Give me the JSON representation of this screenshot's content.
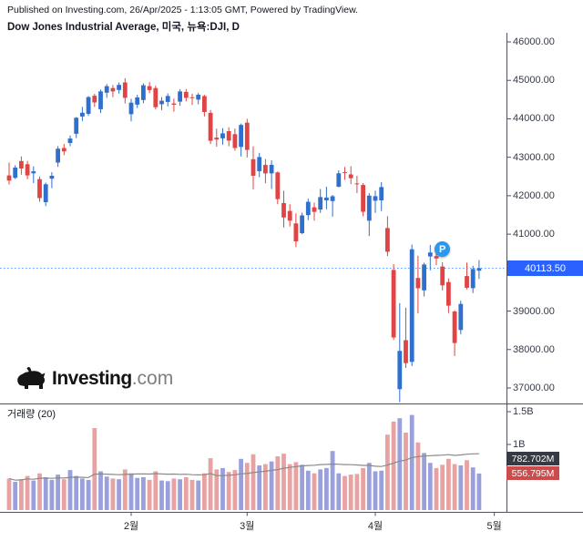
{
  "header": {
    "published_line": "Published on Investing.com, 26/Apr/2025 - 1:13:05 GMT, Powered by TradingView.",
    "title": "Dow Jones Industrial Average, 미국, 뉴욕:DJI, D"
  },
  "logo": {
    "main": "Investing",
    "suffix": ".com"
  },
  "price_axis": {
    "ticks": [
      {
        "text": "46000.00",
        "value": 46000
      },
      {
        "text": "45000.00",
        "value": 45000
      },
      {
        "text": "44000.00",
        "value": 44000
      },
      {
        "text": "43000.00",
        "value": 43000
      },
      {
        "text": "42000.00",
        "value": 42000
      },
      {
        "text": "41000.00",
        "value": 41000
      },
      {
        "text": "40000.00",
        "value": 40000
      },
      {
        "text": "39000.00",
        "value": 39000
      },
      {
        "text": "38000.00",
        "value": 38000
      },
      {
        "text": "37000.00",
        "value": 37000
      }
    ],
    "current_price": {
      "text": "40113.50",
      "value": 40113.5
    }
  },
  "volume_panel": {
    "label": "거래량 (20)",
    "ticks": [
      {
        "text": "1.5B",
        "value": 1500
      },
      {
        "text": "1B",
        "value": 1000
      }
    ],
    "ma_badge": {
      "text": "782.702M",
      "value": 782.702
    },
    "last_badge": {
      "text": "556.795M",
      "value": 556.795
    }
  },
  "time_axis": {
    "labels": [
      {
        "text": "2월",
        "index": 20
      },
      {
        "text": "3월",
        "index": 39
      },
      {
        "text": "4월",
        "index": 60
      },
      {
        "text": "5월",
        "index": 79.5
      }
    ]
  },
  "marker": {
    "label": "P",
    "candle_index": 71
  },
  "colors": {
    "up": "#2f6fce",
    "down": "#e04444",
    "vol_up": "#9aa0dc",
    "vol_down": "#e9a2a2",
    "price_line": "#5b9cf6",
    "price_badge_bg": "#2962ff",
    "ma_badge_bg": "#363a45",
    "vol_badge_bg": "#cc4b4b",
    "vol_ma_line": "#8a8a8a",
    "marker_bg": "#2b98f0",
    "axis_text": "#363a45",
    "separator": "#50535e"
  },
  "chart_data": {
    "type": "candlestick",
    "title": "Dow Jones Industrial Average",
    "symbol": "뉴욕:DJI",
    "interval": "D",
    "last_price": 40113.5,
    "y_axis_range": [
      36600,
      46100
    ],
    "volume_axis_range_millions": [
      0,
      1650
    ],
    "volume_ma_period": 20,
    "columns": [
      "date",
      "open",
      "high",
      "low",
      "close",
      "volume_millions"
    ],
    "candles": [
      [
        "2025-01-02",
        42528,
        42860,
        42291,
        42392,
        480
      ],
      [
        "2025-01-03",
        42464,
        42793,
        42434,
        42732,
        430
      ],
      [
        "2025-01-06",
        42902,
        43022,
        42547,
        42707,
        470
      ],
      [
        "2025-01-07",
        42820,
        42905,
        42430,
        42528,
        520
      ],
      [
        "2025-01-08",
        42584,
        42765,
        42330,
        42635,
        450
      ],
      [
        "2025-01-10",
        42430,
        42500,
        41844,
        41938,
        560
      ],
      [
        "2025-01-13",
        41830,
        42341,
        41730,
        42297,
        500
      ],
      [
        "2025-01-14",
        42442,
        42612,
        42196,
        42518,
        460
      ],
      [
        "2025-01-15",
        42863,
        43290,
        42750,
        43222,
        540
      ],
      [
        "2025-01-16",
        43240,
        43345,
        43055,
        43153,
        470
      ],
      [
        "2025-01-17",
        43373,
        43565,
        43288,
        43488,
        610
      ],
      [
        "2025-01-21",
        43608,
        44046,
        43500,
        44026,
        520
      ],
      [
        "2025-01-22",
        44060,
        44310,
        43945,
        44157,
        480
      ],
      [
        "2025-01-23",
        44130,
        44590,
        44076,
        44565,
        460
      ],
      [
        "2025-01-24",
        44600,
        44650,
        44310,
        44424,
        1250
      ],
      [
        "2025-01-27",
        44250,
        44760,
        44150,
        44714,
        590
      ],
      [
        "2025-01-28",
        44680,
        44903,
        44545,
        44850,
        510
      ],
      [
        "2025-01-29",
        44800,
        44880,
        44565,
        44713,
        480
      ],
      [
        "2025-01-30",
        44750,
        44945,
        44655,
        44882,
        470
      ],
      [
        "2025-01-31",
        44945,
        45054,
        44400,
        44545,
        620
      ],
      [
        "2025-02-03",
        44120,
        44520,
        43935,
        44421,
        560
      ],
      [
        "2025-02-04",
        44370,
        44625,
        44280,
        44556,
        490
      ],
      [
        "2025-02-05",
        44490,
        44920,
        44405,
        44873,
        500
      ],
      [
        "2025-02-06",
        44850,
        44955,
        44665,
        44747,
        460
      ],
      [
        "2025-02-07",
        44800,
        44860,
        44245,
        44303,
        590
      ],
      [
        "2025-02-10",
        44380,
        44560,
        44225,
        44470,
        450
      ],
      [
        "2025-02-11",
        44440,
        44660,
        44320,
        44593,
        440
      ],
      [
        "2025-02-12",
        44400,
        44525,
        44185,
        44368,
        480
      ],
      [
        "2025-02-13",
        44445,
        44765,
        44340,
        44711,
        470
      ],
      [
        "2025-02-14",
        44700,
        44775,
        44450,
        44546,
        500
      ],
      [
        "2025-02-18",
        44560,
        44650,
        44360,
        44556,
        460
      ],
      [
        "2025-02-19",
        44500,
        44675,
        44375,
        44627,
        450
      ],
      [
        "2025-02-20",
        44590,
        44625,
        44060,
        44176,
        560
      ],
      [
        "2025-02-21",
        44155,
        44230,
        43345,
        43428,
        790
      ],
      [
        "2025-02-24",
        43510,
        43745,
        43275,
        43461,
        620
      ],
      [
        "2025-02-25",
        43490,
        43755,
        43325,
        43621,
        640
      ],
      [
        "2025-02-26",
        43680,
        43780,
        43285,
        43433,
        580
      ],
      [
        "2025-02-27",
        43600,
        43745,
        43170,
        43239,
        610
      ],
      [
        "2025-02-28",
        43270,
        43875,
        43020,
        43841,
        780
      ],
      [
        "2025-03-03",
        43900,
        44000,
        42995,
        43191,
        720
      ],
      [
        "2025-03-04",
        42950,
        43285,
        42165,
        42520,
        850
      ],
      [
        "2025-03-05",
        42640,
        43115,
        42480,
        43006,
        680
      ],
      [
        "2025-03-06",
        42800,
        42955,
        42325,
        42579,
        700
      ],
      [
        "2025-03-07",
        42580,
        42920,
        42175,
        42802,
        740
      ],
      [
        "2025-03-10",
        42605,
        42630,
        41780,
        41912,
        820
      ],
      [
        "2025-03-11",
        41810,
        42130,
        41175,
        41433,
        860
      ],
      [
        "2025-03-12",
        41605,
        41780,
        41200,
        41351,
        700
      ],
      [
        "2025-03-13",
        41280,
        41540,
        40665,
        40814,
        730
      ],
      [
        "2025-03-14",
        41025,
        41560,
        41000,
        41488,
        690
      ],
      [
        "2025-03-17",
        41495,
        41925,
        41365,
        41841,
        600
      ],
      [
        "2025-03-18",
        41700,
        41820,
        41350,
        41581,
        560
      ],
      [
        "2025-03-19",
        41640,
        42175,
        41555,
        41964,
        620
      ],
      [
        "2025-03-20",
        41880,
        42235,
        41650,
        41953,
        640
      ],
      [
        "2025-03-21",
        41860,
        42020,
        41455,
        41985,
        900
      ],
      [
        "2025-03-24",
        42235,
        42660,
        42220,
        42583,
        560
      ],
      [
        "2025-03-25",
        42610,
        42745,
        42415,
        42587,
        520
      ],
      [
        "2025-03-26",
        42555,
        42765,
        42300,
        42455,
        540
      ],
      [
        "2025-03-27",
        42320,
        42520,
        42070,
        42299,
        550
      ],
      [
        "2025-03-28",
        42280,
        42330,
        41470,
        41583,
        640
      ],
      [
        "2025-03-31",
        41350,
        42065,
        40950,
        42001,
        720
      ],
      [
        "2025-04-01",
        41870,
        42130,
        41555,
        41989,
        590
      ],
      [
        "2025-04-02",
        41880,
        42355,
        41600,
        42225,
        600
      ],
      [
        "2025-04-03",
        41160,
        41470,
        40430,
        40545,
        1150
      ],
      [
        "2025-04-04",
        40070,
        40220,
        38250,
        38314,
        1350
      ],
      [
        "2025-04-07",
        36970,
        39207,
        36611,
        37965,
        1400
      ],
      [
        "2025-04-08",
        38243,
        39087,
        37521,
        37646,
        1180
      ],
      [
        "2025-04-09",
        37680,
        40730,
        37570,
        40608,
        1450
      ],
      [
        "2025-04-10",
        39860,
        40440,
        38940,
        39593,
        1030
      ],
      [
        "2025-04-11",
        39540,
        40260,
        39380,
        40212,
        870
      ],
      [
        "2025-04-14",
        40420,
        40720,
        40060,
        40524,
        720
      ],
      [
        "2025-04-15",
        40430,
        40600,
        40190,
        40368,
        640
      ],
      [
        "2025-04-16",
        40160,
        40270,
        39540,
        39669,
        690
      ],
      [
        "2025-04-17",
        39755,
        39850,
        38950,
        39142,
        780
      ],
      [
        "2025-04-21",
        38990,
        39020,
        37830,
        38170,
        700
      ],
      [
        "2025-04-22",
        38510,
        39270,
        38400,
        39187,
        680
      ],
      [
        "2025-04-23",
        39910,
        40259,
        39563,
        39606,
        760
      ],
      [
        "2025-04-24",
        39595,
        40179,
        39467,
        40093,
        650
      ],
      [
        "2025-04-25",
        40050,
        40325,
        39835,
        40113.5,
        556.795
      ]
    ]
  }
}
